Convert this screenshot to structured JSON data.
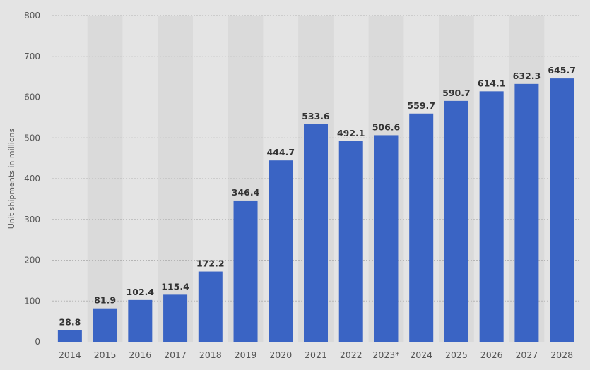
{
  "chart_data": {
    "type": "bar",
    "title": "",
    "xlabel": "",
    "ylabel": "Unit shipments in millions",
    "categories": [
      "2014",
      "2015",
      "2016",
      "2017",
      "2018",
      "2019",
      "2020",
      "2021",
      "2022",
      "2023*",
      "2024",
      "2025",
      "2026",
      "2027",
      "2028"
    ],
    "values": [
      28.8,
      81.9,
      102.4,
      115.4,
      172.2,
      346.4,
      444.7,
      533.6,
      492.1,
      506.6,
      559.7,
      590.7,
      614.1,
      632.3,
      645.7
    ],
    "value_labels": [
      "28.8",
      "81.9",
      "102.4",
      "115.4",
      "172.2",
      "346.4",
      "444.7",
      "533.6",
      "492.1",
      "506.6",
      "559.7",
      "590.7",
      "614.1",
      "632.3",
      "645.7"
    ],
    "ylim": [
      0,
      800
    ],
    "yticks": [
      "0",
      "100",
      "200",
      "300",
      "400",
      "500",
      "600",
      "700",
      "800"
    ],
    "grid": true,
    "legend": "none",
    "colors": {
      "bar": "#3a64c4",
      "background": "#e4e4e4",
      "band": "#dadada",
      "grid": "#b5b5b5",
      "axis": "#555555",
      "tick_text": "#555555",
      "value_text": "#333333"
    }
  }
}
